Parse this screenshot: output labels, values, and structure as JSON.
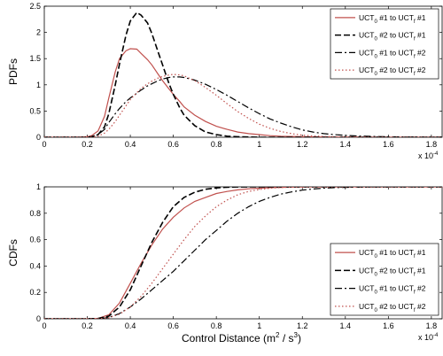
{
  "chart_data": [
    {
      "type": "line",
      "ylabel": "PDFs",
      "xlabel": "",
      "x_multiplier": "x 10",
      "x_multiplier_exp": "-4",
      "xlim": [
        0,
        1.85
      ],
      "ylim": [
        0,
        2.5
      ],
      "xticks": [
        0,
        0.2,
        0.4,
        0.6,
        0.8,
        1,
        1.2,
        1.4,
        1.6,
        1.8
      ],
      "yticks": [
        0,
        0.5,
        1,
        1.5,
        2,
        2.5
      ],
      "legend_position": "top-right",
      "x": [
        0,
        0.05,
        0.1,
        0.15,
        0.2,
        0.22,
        0.25,
        0.28,
        0.3,
        0.33,
        0.35,
        0.38,
        0.4,
        0.43,
        0.45,
        0.48,
        0.5,
        0.53,
        0.55,
        0.58,
        0.6,
        0.63,
        0.65,
        0.7,
        0.75,
        0.8,
        0.85,
        0.9,
        0.95,
        1.0,
        1.05,
        1.1,
        1.15,
        1.2,
        1.25,
        1.3,
        1.35,
        1.4,
        1.45,
        1.5,
        1.55,
        1.6,
        1.65,
        1.7,
        1.75,
        1.8,
        1.85
      ],
      "series": [
        {
          "legend": [
            "UCT",
            "0",
            " #1 to UCT",
            "f",
            " #1"
          ],
          "color": "#c0504d",
          "dash": "solid",
          "values": [
            0,
            0,
            0,
            0,
            0.01,
            0.03,
            0.12,
            0.4,
            0.75,
            1.25,
            1.5,
            1.65,
            1.69,
            1.68,
            1.6,
            1.48,
            1.38,
            1.2,
            1.08,
            0.92,
            0.82,
            0.68,
            0.58,
            0.42,
            0.3,
            0.21,
            0.15,
            0.1,
            0.07,
            0.05,
            0.03,
            0.02,
            0.015,
            0.01,
            0.007,
            0.005,
            0.003,
            0.002,
            0.001,
            0,
            0,
            0,
            0,
            0,
            0,
            0,
            0
          ]
        },
        {
          "legend": [
            "UCT",
            "0",
            " #2 to UCT",
            "f",
            " #1"
          ],
          "color": "#000000",
          "dash": "7 3",
          "values": [
            0,
            0,
            0,
            0,
            0,
            0.01,
            0.05,
            0.2,
            0.45,
            1.0,
            1.4,
            1.95,
            2.22,
            2.38,
            2.33,
            2.18,
            1.98,
            1.62,
            1.38,
            1.02,
            0.82,
            0.56,
            0.42,
            0.22,
            0.1,
            0.05,
            0.02,
            0.01,
            0.005,
            0,
            0,
            0,
            0,
            0,
            0,
            0,
            0,
            0,
            0,
            0,
            0,
            0,
            0,
            0,
            0,
            0,
            0
          ]
        },
        {
          "legend": [
            "UCT",
            "0",
            " #1 to UCT",
            "f",
            " #2"
          ],
          "color": "#000000",
          "dash": "8 3 2 3",
          "values": [
            0,
            0,
            0,
            0,
            0,
            0.01,
            0.05,
            0.15,
            0.28,
            0.45,
            0.55,
            0.68,
            0.75,
            0.84,
            0.9,
            0.98,
            1.02,
            1.08,
            1.11,
            1.14,
            1.15,
            1.15,
            1.14,
            1.09,
            1.01,
            0.91,
            0.8,
            0.68,
            0.56,
            0.45,
            0.35,
            0.27,
            0.2,
            0.14,
            0.1,
            0.07,
            0.05,
            0.035,
            0.025,
            0.018,
            0.013,
            0.01,
            0.007,
            0.005,
            0.003,
            0.002,
            0.001
          ]
        },
        {
          "legend": [
            "UCT",
            "0",
            " #2 to UCT",
            "f",
            " #2"
          ],
          "color": "#c0504d",
          "dash": "1.5 2.5",
          "values": [
            0,
            0,
            0,
            0,
            0,
            0,
            0.02,
            0.08,
            0.15,
            0.3,
            0.42,
            0.6,
            0.72,
            0.85,
            0.93,
            1.02,
            1.07,
            1.13,
            1.16,
            1.19,
            1.2,
            1.19,
            1.17,
            1.08,
            0.95,
            0.8,
            0.64,
            0.49,
            0.36,
            0.25,
            0.17,
            0.11,
            0.07,
            0.04,
            0.025,
            0.015,
            0.008,
            0.004,
            0.002,
            0.001,
            0,
            0,
            0,
            0,
            0,
            0,
            0
          ]
        }
      ]
    },
    {
      "type": "line",
      "ylabel": "CDFs",
      "xlabel_main": "Control Distance (m",
      "xlabel_sup1": "2",
      "xlabel_mid": " / s",
      "xlabel_sup2": "3",
      "xlabel_end": ")",
      "x_multiplier": "x 10",
      "x_multiplier_exp": "-4",
      "xlim": [
        0,
        1.85
      ],
      "ylim": [
        0,
        1
      ],
      "xticks": [
        0,
        0.2,
        0.4,
        0.6,
        0.8,
        1,
        1.2,
        1.4,
        1.6,
        1.8
      ],
      "yticks": [
        0,
        0.2,
        0.4,
        0.6,
        0.8,
        1
      ],
      "legend_position": "bottom-right",
      "x": [
        0,
        0.1,
        0.2,
        0.25,
        0.3,
        0.35,
        0.4,
        0.45,
        0.5,
        0.55,
        0.6,
        0.65,
        0.7,
        0.75,
        0.8,
        0.85,
        0.9,
        0.95,
        1.0,
        1.05,
        1.1,
        1.15,
        1.2,
        1.25,
        1.3,
        1.35,
        1.4,
        1.45,
        1.5,
        1.55,
        1.6,
        1.7,
        1.8,
        1.85
      ],
      "series": [
        {
          "legend": [
            "UCT",
            "0",
            " #1 to UCT",
            "f",
            " #1"
          ],
          "color": "#c0504d",
          "dash": "solid",
          "values": [
            0,
            0,
            0,
            0.003,
            0.03,
            0.12,
            0.27,
            0.42,
            0.56,
            0.68,
            0.77,
            0.84,
            0.89,
            0.92,
            0.95,
            0.965,
            0.977,
            0.985,
            0.99,
            0.994,
            0.996,
            0.998,
            0.999,
            1,
            1,
            1,
            1,
            1,
            1,
            1,
            1,
            1,
            1,
            1
          ]
        },
        {
          "legend": [
            "UCT",
            "0",
            " #2 to UCT",
            "f",
            " #1"
          ],
          "color": "#000000",
          "dash": "7 3",
          "values": [
            0,
            0,
            0,
            0.002,
            0.02,
            0.09,
            0.22,
            0.4,
            0.58,
            0.73,
            0.85,
            0.92,
            0.96,
            0.982,
            0.992,
            0.997,
            0.999,
            1,
            1,
            1,
            1,
            1,
            1,
            1,
            1,
            1,
            1,
            1,
            1,
            1,
            1,
            1,
            1,
            1
          ]
        },
        {
          "legend": [
            "UCT",
            "0",
            " #1 to UCT",
            "f",
            " #2"
          ],
          "color": "#000000",
          "dash": "8 3 2 3",
          "values": [
            0,
            0,
            0,
            0.001,
            0.01,
            0.04,
            0.09,
            0.15,
            0.22,
            0.29,
            0.36,
            0.44,
            0.52,
            0.6,
            0.67,
            0.74,
            0.8,
            0.85,
            0.89,
            0.92,
            0.945,
            0.962,
            0.975,
            0.984,
            0.99,
            0.994,
            0.996,
            0.998,
            0.999,
            1,
            1,
            1,
            1,
            1
          ]
        },
        {
          "legend": [
            "UCT",
            "0",
            " #2 to UCT",
            "f",
            " #2"
          ],
          "color": "#c0504d",
          "dash": "1.5 2.5",
          "values": [
            0,
            0,
            0,
            0.001,
            0.008,
            0.035,
            0.09,
            0.17,
            0.27,
            0.38,
            0.49,
            0.6,
            0.7,
            0.78,
            0.85,
            0.9,
            0.94,
            0.965,
            0.98,
            0.99,
            0.995,
            0.998,
            0.999,
            1,
            1,
            1,
            1,
            1,
            1,
            1,
            1,
            1,
            1,
            1
          ]
        }
      ]
    }
  ]
}
